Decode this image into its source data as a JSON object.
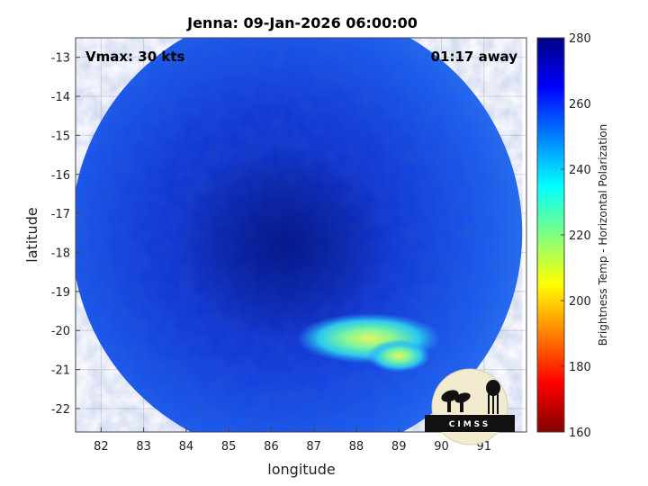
{
  "chart_data": {
    "type": "heatmap",
    "title": "Jenna: 09-Jan-2026 06:00:00",
    "xlabel": "longitude",
    "ylabel": "latitude",
    "xlim": [
      81.4,
      92.0
    ],
    "ylim": [
      -22.6,
      -12.5
    ],
    "xticks": [
      82,
      83,
      84,
      85,
      86,
      87,
      88,
      89,
      90,
      91
    ],
    "xtick_labels": [
      "82",
      "83",
      "84",
      "85",
      "86",
      "87",
      "88",
      "89",
      "90",
      "91"
    ],
    "yticks": [
      -13,
      -14,
      -15,
      -16,
      -17,
      -18,
      -19,
      -20,
      -21,
      -22
    ],
    "ytick_labels": [
      "-13",
      "-14",
      "-15",
      "-16",
      "-17",
      "-18",
      "-19",
      "-20",
      "-21",
      "-22"
    ],
    "grid": true,
    "annotations": {
      "vmax": "Vmax: 30 kts",
      "away": "01:17 away"
    },
    "colorbar": {
      "label": "Brightness Temp - Horizontal Polarization",
      "range": [
        160,
        280
      ],
      "ticks": [
        160,
        180,
        200,
        220,
        240,
        260,
        280
      ],
      "tick_labels": [
        "160",
        "180",
        "200",
        "220",
        "240",
        "260",
        "280"
      ],
      "colormap": [
        "#800000",
        "#ff0000",
        "#ff8000",
        "#ffff00",
        "#80ff80",
        "#00ffff",
        "#0080ff",
        "#0000ff",
        "#000080"
      ]
    },
    "swath_center": [
      86.6,
      -17.5
    ],
    "swath_radius_deg": 5.3,
    "features": [
      {
        "name": "background",
        "tb": 258
      },
      {
        "name": "dark-core",
        "center": [
          86.3,
          -17.8
        ],
        "tb": 270
      },
      {
        "name": "warm-band",
        "center": [
          88.3,
          -20.2
        ],
        "tb": 235
      }
    ],
    "logo": "CIMSS"
  }
}
